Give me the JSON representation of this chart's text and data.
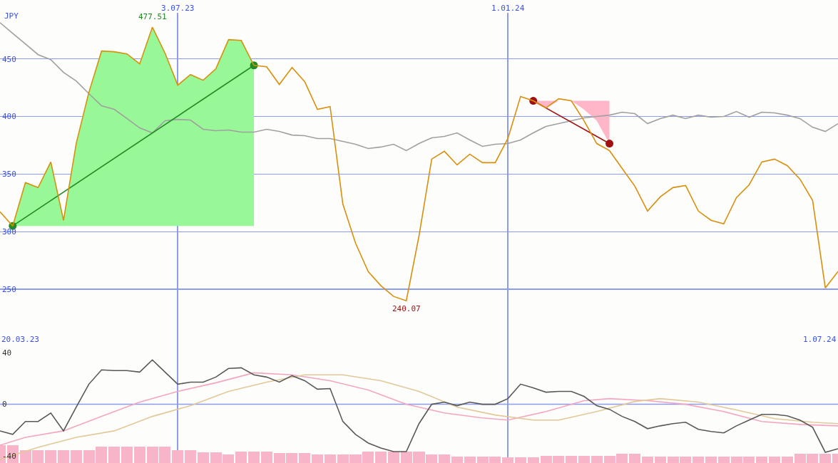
{
  "chart_data": [
    {
      "type": "line",
      "ylabel": "JPY",
      "x": [
        "2023-03-27",
        "2023-04-03",
        "2023-04-10",
        "2023-04-17",
        "2023-04-24",
        "2023-05-01",
        "2023-05-08",
        "2023-05-15",
        "2023-05-22",
        "2023-05-29",
        "2023-06-05",
        "2023-06-12",
        "2023-06-19",
        "2023-06-26",
        "2023-07-03",
        "2023-07-10",
        "2023-07-17",
        "2023-07-24",
        "2023-07-31",
        "2023-08-07",
        "2023-08-14",
        "2023-08-21",
        "2023-08-28",
        "2023-09-04",
        "2023-09-11",
        "2023-09-18",
        "2023-09-25",
        "2023-10-02",
        "2023-10-09",
        "2023-10-16",
        "2023-10-23",
        "2023-10-30",
        "2023-11-06",
        "2023-11-13",
        "2023-11-20",
        "2023-11-27",
        "2023-12-04",
        "2023-12-11",
        "2023-12-18",
        "2023-12-25",
        "2024-01-01",
        "2024-01-08",
        "2024-01-15",
        "2024-01-22",
        "2024-01-29",
        "2024-02-05",
        "2024-02-12",
        "2024-02-19",
        "2024-02-26",
        "2024-03-04",
        "2024-03-11",
        "2024-03-18",
        "2024-03-25",
        "2024-04-01",
        "2024-04-08",
        "2024-04-15",
        "2024-04-22",
        "2024-04-29",
        "2024-05-06",
        "2024-05-13",
        "2024-05-20",
        "2024-05-27",
        "2024-06-03",
        "2024-06-10",
        "2024-06-17",
        "2024-06-24",
        "2024-07-01"
      ],
      "series": [
        {
          "color": "#a0a0a0",
          "values": [
            481.5,
            472.2,
            463,
            453.7,
            449.4,
            438.3,
            430.9,
            419.8,
            409.3,
            406.2,
            398.2,
            390.1,
            385.8,
            396.3,
            397.5,
            396.9,
            388.9,
            387.7,
            388.3,
            386.4,
            386.4,
            388.9,
            387,
            383.9,
            383.3,
            380.9,
            380.9,
            378.4,
            375.9,
            372.2,
            373.5,
            375.9,
            370.4,
            376.5,
            381.5,
            382.7,
            385.8,
            379.6,
            374.1,
            375.9,
            376.5,
            379.6,
            385.8,
            391.4,
            393.8,
            396.3,
            398.8,
            400,
            401.2,
            403.7,
            402.5,
            393.8,
            398.2,
            401.2,
            398.2,
            401.2,
            399.4,
            400,
            404.3,
            399.4,
            403.7,
            403.1,
            401.2,
            398.2,
            390.7,
            387,
            393.8
          ]
        },
        {
          "type": "line",
          "color": "#228b22",
          "marker": "circle",
          "x": [
            "2023-04-03",
            "2023-08-14"
          ],
          "values": [
            305,
            444.4
          ]
        },
        {
          "type": "line",
          "color": "#a01010",
          "marker": "circle",
          "x": [
            "2024-01-15",
            "2024-01-22",
            "2024-01-29",
            "2024-02-05",
            "2024-02-12",
            "2024-02-19",
            "2024-02-26"
          ],
          "values": [
            413.6,
            null,
            null,
            null,
            null,
            null,
            376.5
          ],
          "lower": [
            413.6,
            407.4,
            413.6,
            413.6,
            406,
            396.3,
            376.5
          ],
          "upper": [
            413.6,
            413.6,
            413.6,
            413.6,
            413.6,
            413.6,
            413.6
          ]
        },
        {
          "color": "#d8900c",
          "values": [
            317.3,
            305,
            342.6,
            338.3,
            360.5,
            309.9,
            376.5,
            421,
            456.8,
            456.2,
            454.3,
            445.7,
            477.51,
            454.9,
            427.2,
            436.4,
            431.5,
            441.4,
            466.7,
            466,
            444.4,
            443.2,
            427.8,
            442.6,
            430.2,
            406.2,
            408.6,
            324.1,
            290.1,
            265.4,
            253.1,
            243.8,
            240.07,
            296.3,
            363,
            369.8,
            358,
            367.3,
            359.9,
            359.9,
            380.9,
            417.3,
            413.6,
            407.4,
            415.4,
            413.6,
            396.3,
            376.5,
            370.4,
            354.9,
            339.5,
            317.9,
            330.2,
            338.3,
            340.1,
            317.9,
            309.9,
            306.8,
            329.6,
            340.7,
            360.5,
            363,
            357.4,
            345.7,
            327.2,
            251.2,
            265.4
          ],
          "lower": [
            null,
            305,
            305,
            305,
            305,
            305,
            305,
            305,
            305,
            305,
            305,
            305,
            305,
            305,
            305,
            305,
            305,
            305,
            305,
            305,
            305,
            null,
            null,
            null,
            null,
            null,
            null,
            null,
            null,
            null,
            null,
            null,
            null,
            null,
            null,
            null,
            null,
            null,
            null,
            null,
            null,
            null,
            null,
            null,
            null,
            null,
            null,
            null,
            null,
            null,
            null,
            null,
            null,
            null,
            null,
            null,
            null,
            null,
            null,
            null,
            null,
            null,
            null,
            null,
            null,
            null,
            null
          ],
          "upper": [
            null,
            305,
            342.6,
            338.3,
            360.5,
            309.9,
            376.5,
            421,
            456.8,
            456.2,
            454.3,
            445.7,
            477.51,
            454.9,
            427.2,
            436.4,
            431.5,
            441.4,
            466.7,
            466,
            444.4,
            null,
            null,
            null,
            null,
            null,
            null,
            null,
            null,
            null,
            null,
            null,
            null,
            null,
            null,
            null,
            null,
            null,
            null,
            null,
            null,
            null,
            null,
            null,
            null,
            null,
            null,
            null,
            null,
            null,
            null,
            null,
            null,
            null,
            null,
            null,
            null,
            null,
            null,
            null,
            null,
            null,
            null,
            null,
            null,
            null,
            null
          ]
        }
      ],
      "xlim": [
        "2023-03-27",
        "2024-07-01"
      ],
      "xticks": [
        {
          "value": "2023-07-03",
          "label": "3.07.23"
        },
        {
          "value": "2024-01-01",
          "label": "1.01.24"
        }
      ],
      "ylim": [
        200,
        490
      ],
      "yticks": [
        250,
        300,
        350,
        400,
        450
      ],
      "grid": true,
      "legend": false,
      "annotations": [
        {
          "text": "477.51",
          "x": "2023-06-19",
          "y": 477.51
        },
        {
          "text": "240.07",
          "x": "2023-11-06",
          "y": 240.07
        },
        "20.03.23",
        "1.07.24"
      ]
    },
    {
      "type": "line",
      "x": [
        "2023-03-27",
        "2023-04-03",
        "2023-04-10",
        "2023-04-17",
        "2023-04-24",
        "2023-05-01",
        "2023-05-08",
        "2023-05-15",
        "2023-05-22",
        "2023-05-29",
        "2023-06-05",
        "2023-06-12",
        "2023-06-19",
        "2023-06-26",
        "2023-07-03",
        "2023-07-10",
        "2023-07-17",
        "2023-07-24",
        "2023-07-31",
        "2023-08-07",
        "2023-08-14",
        "2023-08-21",
        "2023-08-28",
        "2023-09-04",
        "2023-09-11",
        "2023-09-18",
        "2023-09-25",
        "2023-10-02",
        "2023-10-09",
        "2023-10-16",
        "2023-10-23",
        "2023-10-30",
        "2023-11-06",
        "2023-11-13",
        "2023-11-20",
        "2023-11-27",
        "2023-12-04",
        "2023-12-11",
        "2023-12-18",
        "2023-12-25",
        "2024-01-01",
        "2024-01-08",
        "2024-01-15",
        "2024-01-22",
        "2024-01-29",
        "2024-02-05",
        "2024-02-12",
        "2024-02-19",
        "2024-02-26",
        "2024-03-04",
        "2024-03-11",
        "2024-03-18",
        "2024-03-25",
        "2024-04-01",
        "2024-04-08",
        "2024-04-15",
        "2024-04-22",
        "2024-04-29",
        "2024-05-06",
        "2024-05-13",
        "2024-05-20",
        "2024-05-27",
        "2024-06-03",
        "2024-06-10",
        "2024-06-17",
        "2024-06-24",
        "2024-07-01"
      ],
      "series": [
        {
          "type": "bar",
          "color": "#f8b4c8",
          "base": [
            -45.5,
            -45.5,
            -45.5,
            -45.5,
            -45.5,
            -45.5,
            -45.5,
            -45.5,
            -45.5,
            -45.5,
            -45.5,
            -45.5,
            -45.5,
            -45.5,
            -45.5,
            -45.5,
            -45.5,
            -45.5,
            -45.5,
            -45.5,
            -45.5,
            -45.5,
            -45.5,
            -45.5,
            -45.5,
            -45.5,
            -45.5,
            -45.5,
            -45.5,
            -45.5,
            -45.5,
            -45.5,
            -45.5,
            -45.5,
            -45.5,
            -45.5,
            -45.5,
            -45.5,
            -45.5,
            -45.5,
            -45.5,
            -45.5,
            -45.5,
            -45.5,
            -45.5,
            -45.5,
            -45.5,
            -45.5,
            -45.5,
            -45.5,
            -45.5,
            -45.5,
            -45.5,
            -45.5,
            -45.5,
            -45.5,
            -45.5,
            -45.5,
            -45.5,
            -45.5,
            -45.5,
            -45.5,
            -45.5,
            -45.5,
            -45.5,
            -45.5,
            -45.5
          ],
          "values": [
            13.9,
            13.9,
            10,
            10,
            10,
            10,
            10,
            10,
            12.8,
            12.8,
            12.8,
            12.8,
            12.8,
            12.8,
            10,
            10,
            8.3,
            8.3,
            6.7,
            8.9,
            8.9,
            8.9,
            7.8,
            7.8,
            7.8,
            6.7,
            6.7,
            6.7,
            6.7,
            8.9,
            8.9,
            8.9,
            8.9,
            8.9,
            6.7,
            6.7,
            5,
            5,
            5,
            5,
            4.4,
            4.4,
            4.4,
            5.6,
            5.6,
            5.6,
            5.6,
            5.6,
            5.6,
            7.2,
            7.2,
            5,
            5,
            5,
            5,
            5,
            5,
            5,
            5,
            5,
            5,
            5,
            5,
            7.2,
            7.2,
            7.2,
            7.2
          ]
        },
        {
          "color": "#f4a6c0",
          "x": [
            "2023-03-27",
            "2023-04-10",
            "2023-05-01",
            "2023-05-22",
            "2023-06-12",
            "2023-07-03",
            "2023-07-24",
            "2023-08-14",
            "2023-09-04",
            "2023-09-25",
            "2023-10-16",
            "2023-11-06",
            "2023-11-27",
            "2023-12-18",
            "2024-01-01",
            "2024-01-22",
            "2024-02-12",
            "2024-02-26",
            "2024-03-18",
            "2024-04-08",
            "2024-04-29",
            "2024-05-20",
            "2024-06-10",
            "2024-07-01"
          ],
          "values": [
            -31.7,
            -25.6,
            -20.6,
            -9.4,
            1.7,
            10,
            16.7,
            24.4,
            22.8,
            18.3,
            11.1,
            0,
            -6.7,
            -10.6,
            -12.2,
            -5.6,
            2.8,
            4.4,
            2.8,
            0,
            -5.6,
            -13.3,
            -15.6,
            -16.7
          ]
        },
        {
          "color": "#e2c898",
          "x": [
            "2023-03-27",
            "2023-04-17",
            "2023-05-08",
            "2023-05-29",
            "2023-06-19",
            "2023-07-10",
            "2023-07-31",
            "2023-08-21",
            "2023-09-11",
            "2023-10-02",
            "2023-10-23",
            "2023-11-13",
            "2023-12-04",
            "2023-12-25",
            "2024-01-15",
            "2024-01-29",
            "2024-02-19",
            "2024-03-11",
            "2024-03-25",
            "2024-04-15",
            "2024-05-06",
            "2024-05-27",
            "2024-06-17",
            "2024-07-01"
          ],
          "values": [
            -42.8,
            -33.3,
            -25.6,
            -20.6,
            -9.4,
            -1.1,
            10,
            17.2,
            22.8,
            22.8,
            18.3,
            10,
            -2.2,
            -8.3,
            -12.2,
            -12.2,
            -5.6,
            2.2,
            4.4,
            1.7,
            -4.4,
            -11.1,
            -13.9,
            -15
          ]
        },
        {
          "color": "#585858",
          "values": [
            -20.6,
            -23.3,
            -13.3,
            -13.3,
            -6.7,
            -20.6,
            -2.2,
            15.6,
            26.7,
            26.1,
            26.1,
            25,
            34.4,
            25,
            15.6,
            17.2,
            17.2,
            21.1,
            27.8,
            28.3,
            22.8,
            21.1,
            17.2,
            22.2,
            18.3,
            11.7,
            12.2,
            -13.3,
            -23.3,
            -30,
            -33.9,
            -36.7,
            -36.7,
            -15,
            0,
            1.7,
            -1.1,
            1.7,
            0,
            0,
            4.4,
            15.6,
            12.8,
            9.4,
            10,
            10,
            6.1,
            -1.1,
            -3.9,
            -9.4,
            -13.3,
            -18.9,
            -16.7,
            -15,
            -13.9,
            -19.4,
            -21.1,
            -22.2,
            -16.7,
            -12.2,
            -7.8,
            -7.8,
            -8.9,
            -12.2,
            -17.8,
            -37.2,
            -34.4
          ]
        }
      ],
      "xlim": [
        "2023-03-27",
        "2024-07-01"
      ],
      "xticks": [
        {
          "value": "2023-07-03",
          "label": null
        },
        {
          "value": "2024-01-01",
          "label": null
        }
      ],
      "ylim": [
        -45.5,
        44.5
      ],
      "yticks": [
        -40,
        0,
        40
      ],
      "grid": "x",
      "tick_labels": "y",
      "legend": false,
      "ref_lines": [
        {
          "axis": "y",
          "value": 0,
          "color": "#8c9cf0"
        }
      ]
    }
  ]
}
